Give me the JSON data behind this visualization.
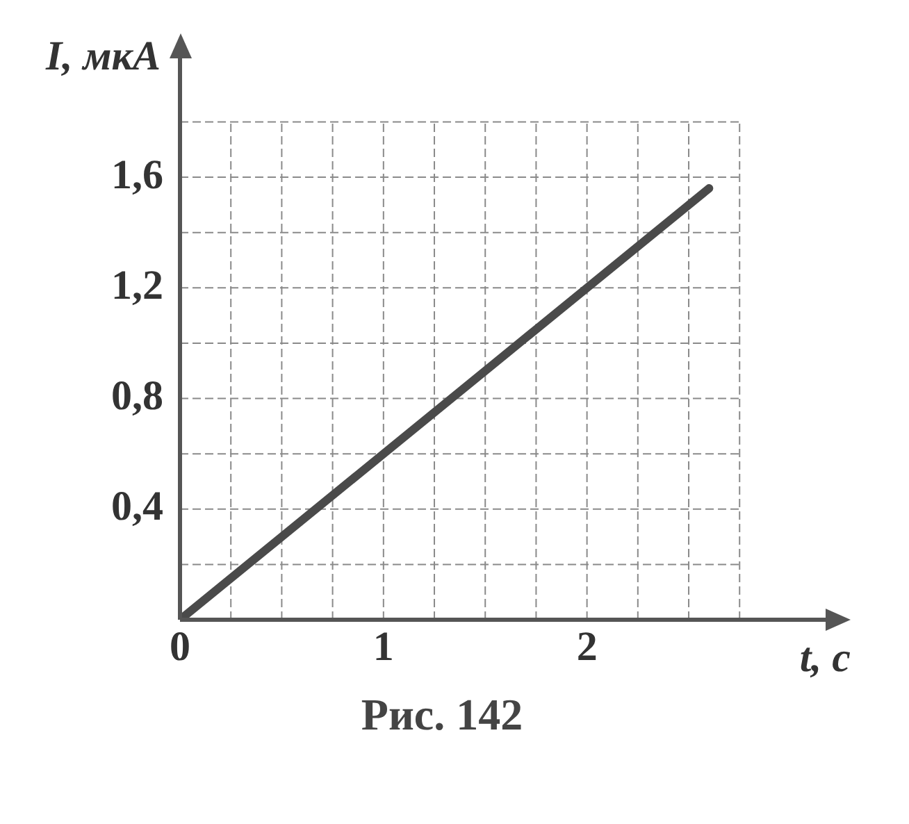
{
  "chart_data": {
    "type": "line",
    "xlabel": "t, с",
    "ylabel": "I, мкА",
    "x": [
      0,
      2.6
    ],
    "series": [
      {
        "color": "#4a4a4a",
        "values": [
          0,
          1.56
        ]
      }
    ],
    "xlim": [
      0,
      3.2
    ],
    "ylim": [
      0,
      2.05
    ],
    "xticks": [
      {
        "value": 0,
        "label": "0"
      },
      {
        "value": 0.25,
        "label": null
      },
      {
        "value": 0.5,
        "label": null
      },
      {
        "value": 0.75,
        "label": null
      },
      {
        "value": 1,
        "label": "1"
      },
      {
        "value": 1.25,
        "label": null
      },
      {
        "value": 1.5,
        "label": null
      },
      {
        "value": 1.75,
        "label": null
      },
      {
        "value": 2,
        "label": "2"
      },
      {
        "value": 2.25,
        "label": null
      },
      {
        "value": 2.5,
        "label": null
      },
      {
        "value": 2.75,
        "label": null
      }
    ],
    "yticks": [
      {
        "value": 0.2,
        "label": null
      },
      {
        "value": 0.4,
        "label": "0,4"
      },
      {
        "value": 0.6,
        "label": null
      },
      {
        "value": 0.8,
        "label": "0,8"
      },
      {
        "value": 1,
        "label": null
      },
      {
        "value": 1.2,
        "label": "1,2"
      },
      {
        "value": 1.4,
        "label": null
      },
      {
        "value": 1.6,
        "label": "1,6"
      },
      {
        "value": 1.8,
        "label": null
      }
    ],
    "grid": true,
    "marker": "none",
    "line_style": "solid",
    "legend": false,
    "annotations": [
      "Рис. 142"
    ]
  }
}
